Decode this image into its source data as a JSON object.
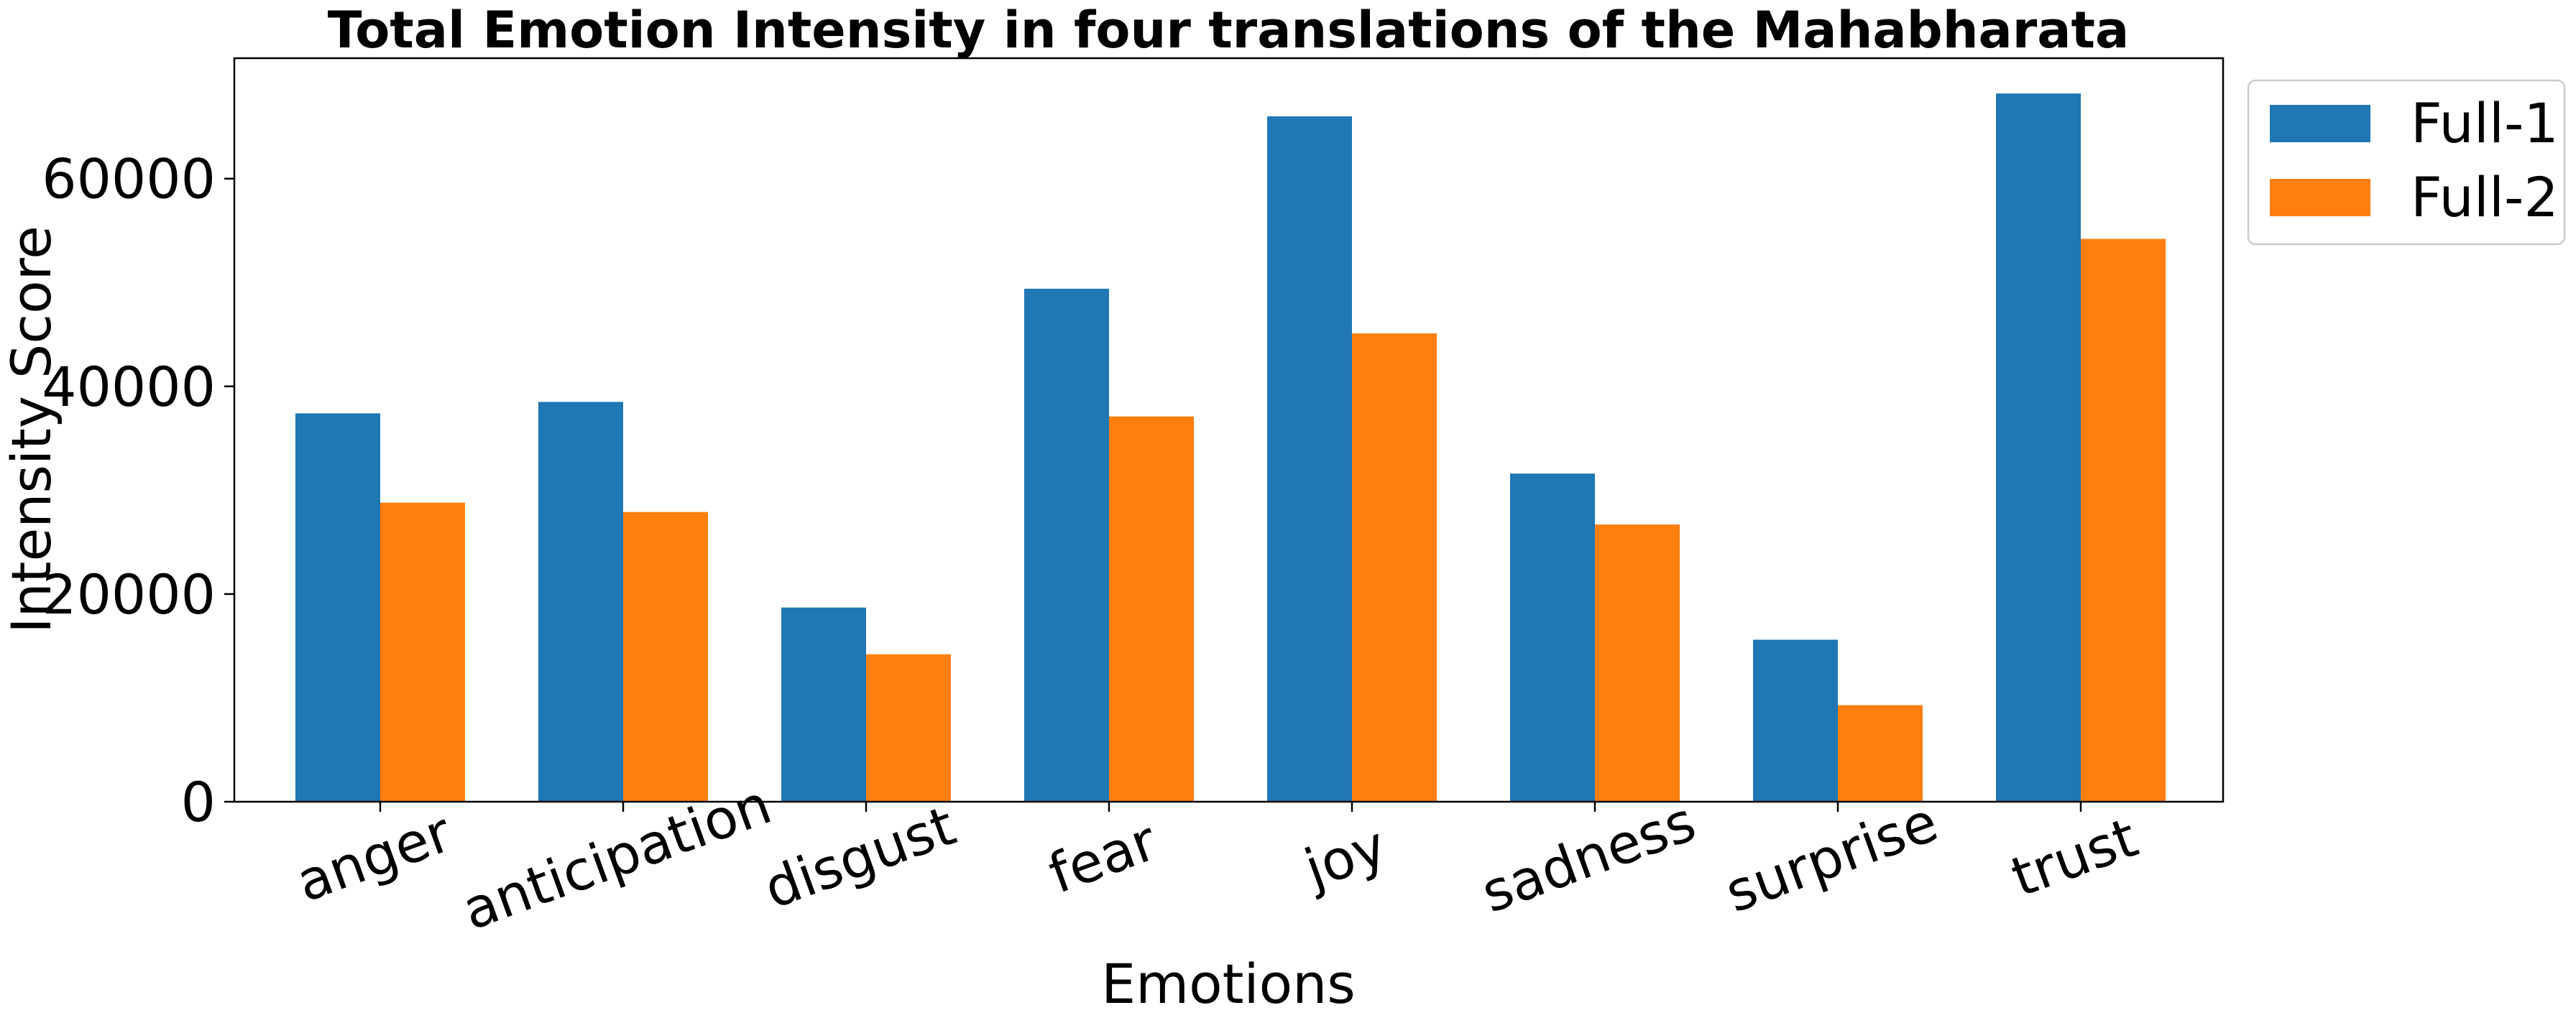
{
  "chart_data": {
    "type": "bar",
    "title": "Total Emotion Intensity in four translations of the Mahabharata",
    "xlabel": "Emotions",
    "ylabel": "Intensity Score",
    "categories": [
      "anger",
      "anticipation",
      "disgust",
      "fear",
      "joy",
      "sadness",
      "surprise",
      "trust"
    ],
    "series": [
      {
        "name": "Full-1",
        "color": "#1f77b4",
        "values": [
          37400,
          38500,
          18700,
          49400,
          66000,
          31600,
          15600,
          68200
        ]
      },
      {
        "name": "Full-2",
        "color": "#ff7f0e",
        "values": [
          28800,
          27900,
          14200,
          37100,
          45100,
          26700,
          9300,
          54200
        ]
      }
    ],
    "ylim": [
      0,
      71600
    ],
    "yticks": [
      0,
      20000,
      40000,
      60000
    ],
    "ytick_labels": [
      "0",
      "20000",
      "40000",
      "60000"
    ],
    "grid": false,
    "legend_position": "outside-top-right"
  }
}
